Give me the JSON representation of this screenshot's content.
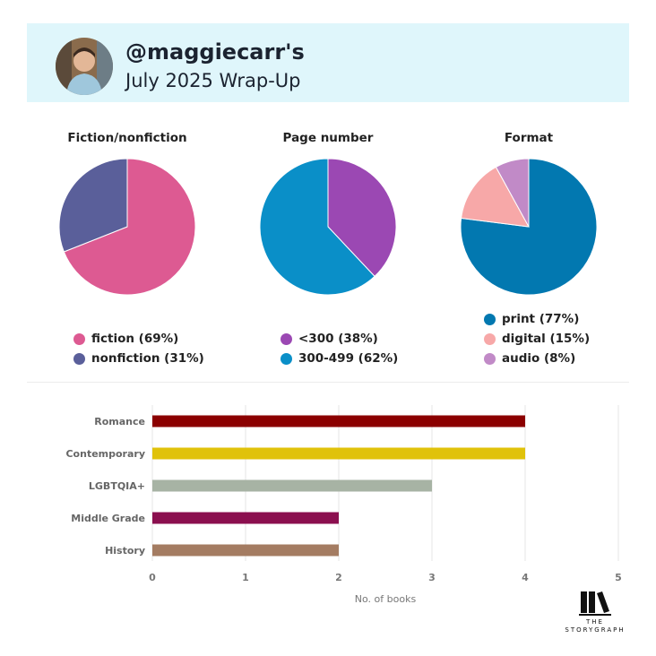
{
  "header": {
    "handle": "@maggiecarr's",
    "subtitle": "July 2025 Wrap-Up",
    "background": "#dff6fb"
  },
  "pies": [
    {
      "title": "Fiction/nonfiction",
      "slices": [
        {
          "label": "fiction (69%)",
          "value": 69,
          "color": "#dd5a92"
        },
        {
          "label": "nonfiction (31%)",
          "value": 31,
          "color": "#5a5f9a"
        }
      ]
    },
    {
      "title": "Page number",
      "slices": [
        {
          "label": "<300 (38%)",
          "value": 38,
          "color": "#9b48b3"
        },
        {
          "label": "300-499 (62%)",
          "value": 62,
          "color": "#0a8fc8"
        }
      ]
    },
    {
      "title": "Format",
      "slices": [
        {
          "label": "print (77%)",
          "value": 77,
          "color": "#0278b0"
        },
        {
          "label": "digital (15%)",
          "value": 15,
          "color": "#f7a8a8"
        },
        {
          "label": "audio (8%)",
          "value": 8,
          "color": "#c18ac7"
        }
      ]
    }
  ],
  "chart_data": {
    "type": "bar",
    "orientation": "horizontal",
    "categories": [
      "Romance",
      "Contemporary",
      "LGBTQIA+",
      "Middle Grade",
      "History"
    ],
    "values": [
      4,
      4,
      3,
      2,
      2
    ],
    "colors": [
      "#8b0000",
      "#e0c20a",
      "#a7b3a4",
      "#8b0f4f",
      "#a47c62"
    ],
    "xlabel": "No. of books",
    "xlim": [
      0,
      5
    ],
    "xticks": [
      "0",
      "1",
      "2",
      "3",
      "4",
      "5"
    ],
    "grid": true
  },
  "logo": {
    "line1": "THE",
    "line2": "STORYGRAPH"
  }
}
